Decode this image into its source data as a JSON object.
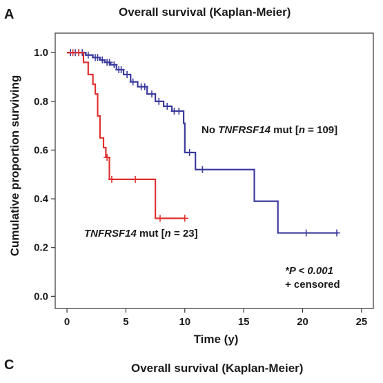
{
  "panels": {
    "top_letter": "A",
    "bottom_letter": "C",
    "bottom_title": "Overall survival (Kaplan-Meier)"
  },
  "chart_data": {
    "type": "line",
    "step": true,
    "title": "Overall survival (Kaplan-Meier)",
    "xlabel": "Time (y)",
    "ylabel": "Cumulative proportion surviving",
    "xlim": [
      -1,
      26
    ],
    "ylim": [
      -0.05,
      1.08
    ],
    "xticks": [
      0,
      5,
      10,
      15,
      20,
      25
    ],
    "yticks": [
      0.0,
      0.2,
      0.4,
      0.6,
      0.8,
      1.0
    ],
    "ytick_labels": [
      "0.0",
      "0.2",
      "0.4",
      "0.6",
      "0.8",
      "1.0"
    ],
    "grid": false,
    "annotations": {
      "p_value": "*P < 0.001",
      "censor_note": "+ censored"
    },
    "series": [
      {
        "label_prefix": "No ",
        "label_gene": "TNFRSF14",
        "label_middle": " mut [",
        "label_n": "n",
        "label_suffix": " = 109]",
        "color": "#3a3a9c",
        "steps": [
          [
            0,
            1.0
          ],
          [
            1.6,
            0.99
          ],
          [
            2.2,
            0.98
          ],
          [
            2.8,
            0.97
          ],
          [
            3.2,
            0.96
          ],
          [
            3.7,
            0.95
          ],
          [
            4.2,
            0.93
          ],
          [
            4.8,
            0.91
          ],
          [
            5.4,
            0.88
          ],
          [
            6.0,
            0.86
          ],
          [
            6.8,
            0.83
          ],
          [
            7.5,
            0.8
          ],
          [
            8.2,
            0.78
          ],
          [
            8.9,
            0.76
          ],
          [
            9.9,
            0.71
          ],
          [
            10.0,
            0.59
          ],
          [
            10.9,
            0.52
          ],
          [
            15.9,
            0.39
          ],
          [
            17.9,
            0.26
          ]
        ],
        "end_x": 23,
        "censored": [
          [
            0.3,
            1.0
          ],
          [
            0.7,
            1.0
          ],
          [
            1.0,
            1.0
          ],
          [
            1.3,
            1.0
          ],
          [
            1.8,
            0.99
          ],
          [
            2.4,
            0.98
          ],
          [
            2.6,
            0.98
          ],
          [
            3.0,
            0.97
          ],
          [
            3.4,
            0.96
          ],
          [
            3.6,
            0.96
          ],
          [
            4.0,
            0.95
          ],
          [
            4.4,
            0.93
          ],
          [
            4.6,
            0.93
          ],
          [
            5.1,
            0.91
          ],
          [
            5.6,
            0.88
          ],
          [
            6.3,
            0.86
          ],
          [
            6.6,
            0.86
          ],
          [
            7.2,
            0.83
          ],
          [
            7.8,
            0.8
          ],
          [
            8.5,
            0.78
          ],
          [
            9.1,
            0.76
          ],
          [
            9.5,
            0.76
          ],
          [
            10.4,
            0.59
          ],
          [
            11.5,
            0.52
          ],
          [
            20.3,
            0.26
          ],
          [
            22.9,
            0.26
          ]
        ]
      },
      {
        "label_gene": "TNFRSF14",
        "label_middle": " mut [",
        "label_n": "n",
        "label_suffix": " = 23]",
        "color": "#e03030",
        "steps": [
          [
            0,
            1.0
          ],
          [
            1.4,
            0.96
          ],
          [
            1.8,
            0.91
          ],
          [
            2.2,
            0.87
          ],
          [
            2.4,
            0.83
          ],
          [
            2.6,
            0.74
          ],
          [
            2.8,
            0.65
          ],
          [
            3.1,
            0.61
          ],
          [
            3.3,
            0.57
          ],
          [
            3.6,
            0.48
          ],
          [
            7.5,
            0.32
          ]
        ],
        "end_x": 10,
        "censored": [
          [
            0.5,
            1.0
          ],
          [
            1.0,
            1.0
          ],
          [
            3.4,
            0.57
          ],
          [
            3.8,
            0.48
          ],
          [
            5.8,
            0.48
          ],
          [
            7.9,
            0.32
          ],
          [
            10.0,
            0.32
          ]
        ]
      }
    ]
  }
}
